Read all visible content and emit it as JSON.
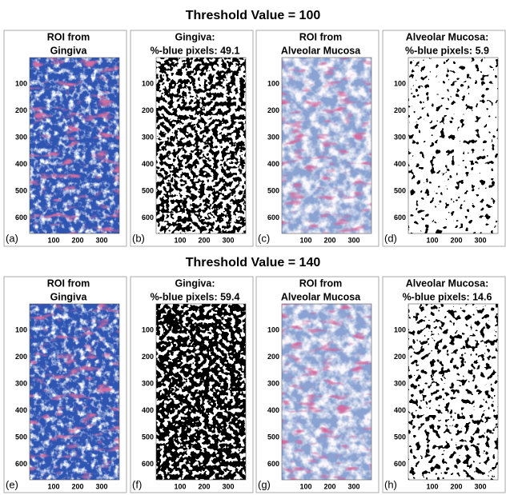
{
  "rows": [
    {
      "title": "Threshold Value = 100",
      "panels": [
        {
          "title": [
            "ROI from",
            "Gingiva"
          ],
          "label": "(a)",
          "yticks": [
            "100",
            "200",
            "300",
            "400",
            "500",
            "600"
          ],
          "xticks": [
            "100",
            "200",
            "300"
          ]
        },
        {
          "title": [
            "Gingiva:",
            "%-blue pixels: 49.1"
          ],
          "label": "(b)",
          "yticks": [
            "100",
            "200",
            "300",
            "400",
            "500",
            "600"
          ],
          "xticks": [
            "100",
            "200",
            "300"
          ]
        },
        {
          "title": [
            "ROI from",
            "Alveolar Mucosa"
          ],
          "label": "(c)",
          "yticks": [
            "100",
            "200",
            "300",
            "400",
            "500",
            "600"
          ],
          "xticks": [
            "100",
            "200",
            "300"
          ]
        },
        {
          "title": [
            "Alveolar Mucosa:",
            "%-blue pixels:  5.9"
          ],
          "label": "(d)",
          "yticks": [
            "100",
            "200",
            "300",
            "400",
            "500",
            "600"
          ],
          "xticks": [
            "100",
            "200",
            "300"
          ]
        }
      ]
    },
    {
      "title": "Threshold Value = 140",
      "panels": [
        {
          "title": [
            "ROI from",
            "Gingiva"
          ],
          "label": "(e)",
          "yticks": [
            "100",
            "200",
            "300",
            "400",
            "500",
            "600"
          ],
          "xticks": [
            "100",
            "200",
            "300"
          ]
        },
        {
          "title": [
            "Gingiva:",
            "%-blue pixels: 59.4"
          ],
          "label": "(f)",
          "yticks": [
            "100",
            "200",
            "300",
            "400",
            "500",
            "600"
          ],
          "xticks": [
            "100",
            "200",
            "300"
          ]
        },
        {
          "title": [
            "ROI from",
            "Alveolar Mucosa"
          ],
          "label": "(g)",
          "yticks": [
            "100",
            "200",
            "300",
            "400",
            "500",
            "600"
          ],
          "xticks": [
            "100",
            "200",
            "300"
          ]
        },
        {
          "title": [
            "Alveolar Mucosa:",
            "%-blue pixels: 14.6"
          ],
          "label": "(h)",
          "yticks": [
            "100",
            "200",
            "300",
            "400",
            "500",
            "600"
          ],
          "xticks": [
            "100",
            "200",
            "300"
          ]
        }
      ]
    }
  ]
}
